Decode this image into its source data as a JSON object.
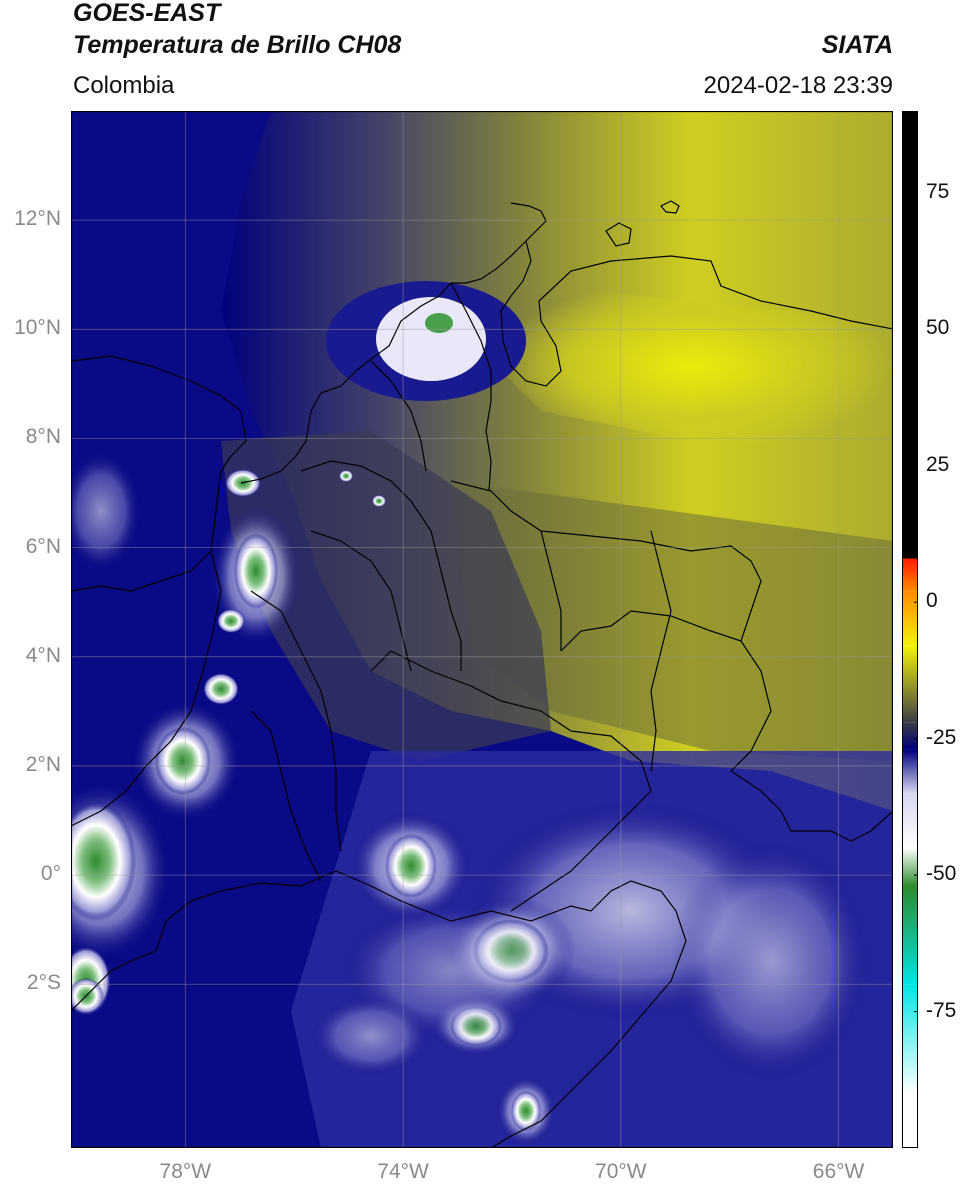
{
  "header": {
    "satellite": "GOES-EAST",
    "product": "Temperatura de Brillo CH08",
    "region": "Colombia",
    "source": "SIATA",
    "datetime": "2024-02-18 23:39"
  },
  "map": {
    "lat_labels": [
      "12°N",
      "10°N",
      "8°N",
      "6°N",
      "4°N",
      "2°N",
      "0°",
      "2°S"
    ],
    "lat_values": [
      12,
      10,
      8,
      6,
      4,
      2,
      0,
      -2
    ],
    "lon_labels": [
      "78°W",
      "74°W",
      "70°W",
      "66°W"
    ],
    "lon_values": [
      -78,
      -74,
      -70,
      -66
    ],
    "extent": {
      "lon_min": -80.1,
      "lon_max": -65.0,
      "lat_min": -5.0,
      "lat_max": 14.0
    }
  },
  "colorbar": {
    "ticks": [
      "75",
      "50",
      "25",
      "0",
      "-25",
      "-50",
      "-75"
    ],
    "tick_values": [
      75,
      50,
      25,
      0,
      -25,
      -50,
      -75
    ],
    "range": [
      -100,
      90
    ],
    "colors": {
      "black": "#000000",
      "red": "#ff1a00",
      "orange": "#ff8c00",
      "yellow": "#f2f20a",
      "olive": "#808030",
      "dark_gray": "#3c3c46",
      "navy": "#00007d",
      "light_lavender": "#d6d6f0",
      "white": "#ffffff",
      "green": "#2e8b2e",
      "cyan": "#00e5e5"
    }
  }
}
